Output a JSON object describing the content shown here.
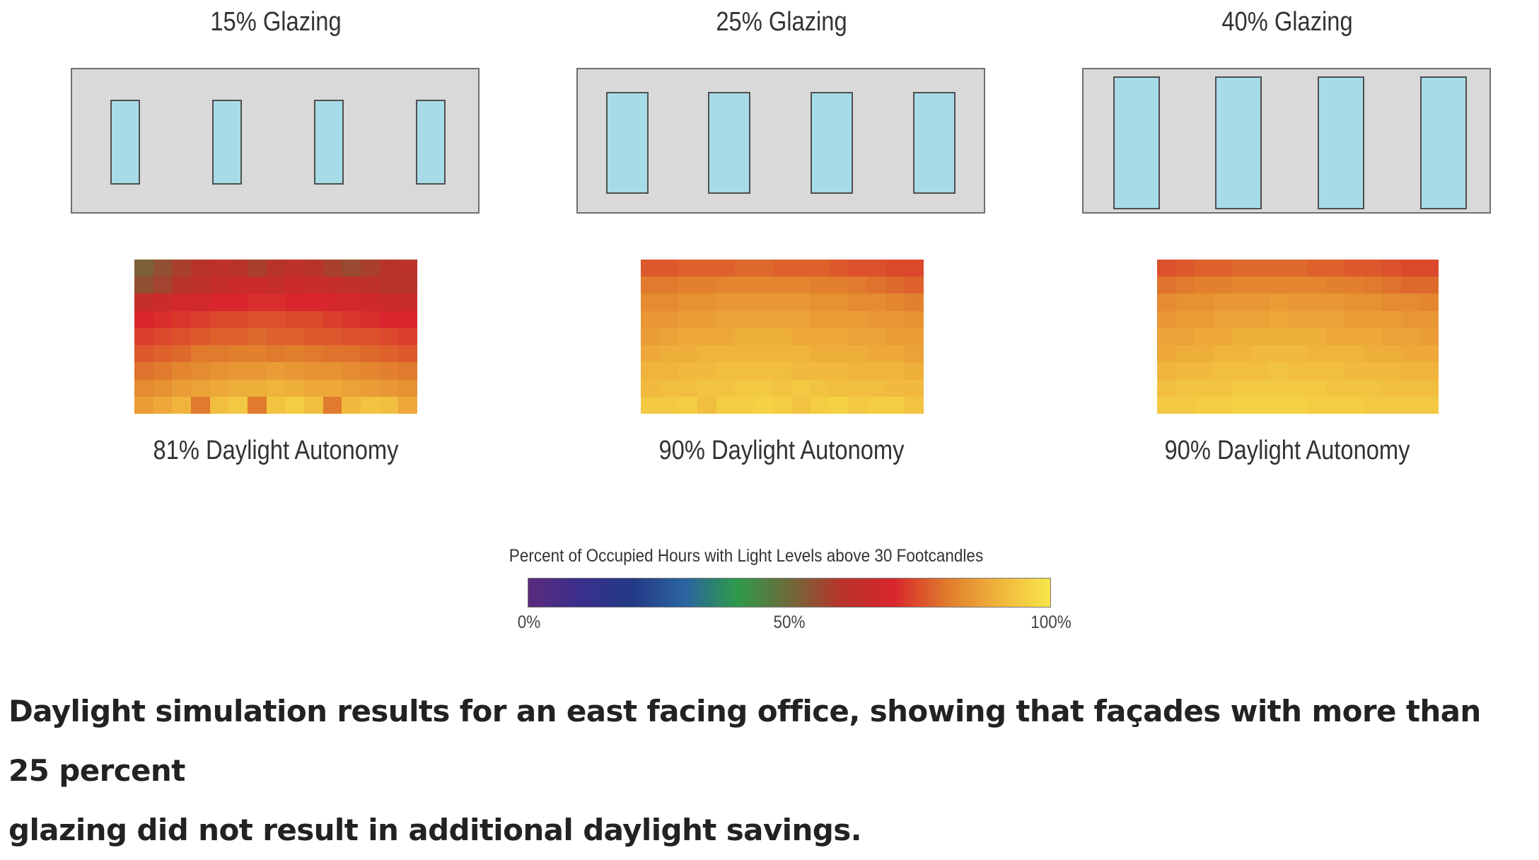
{
  "panels": [
    {
      "title": "15% Glazing",
      "autonomy_label": "81% Daylight Autonomy",
      "daylight_autonomy_percent": 81,
      "heatmap_values": [
        [
          52,
          55,
          58,
          60,
          62,
          60,
          58,
          60,
          62,
          60,
          58,
          56,
          58,
          60,
          61
        ],
        [
          55,
          57,
          60,
          62,
          64,
          66,
          66,
          64,
          66,
          65,
          64,
          63,
          62,
          60,
          60
        ],
        [
          64,
          66,
          68,
          68,
          70,
          70,
          71,
          71,
          70,
          70,
          69,
          68,
          67,
          66,
          65
        ],
        [
          70,
          71,
          72,
          73,
          74,
          74,
          75,
          75,
          74,
          74,
          73,
          72,
          71,
          70,
          70
        ],
        [
          73,
          74,
          75,
          76,
          77,
          77,
          78,
          77,
          77,
          76,
          76,
          75,
          75,
          74,
          73
        ],
        [
          76,
          77,
          78,
          80,
          80,
          81,
          81,
          80,
          81,
          80,
          79,
          79,
          78,
          77,
          76
        ],
        [
          79,
          80,
          82,
          83,
          84,
          85,
          85,
          86,
          85,
          84,
          84,
          83,
          82,
          81,
          80
        ],
        [
          83,
          84,
          86,
          87,
          88,
          89,
          89,
          90,
          89,
          88,
          88,
          87,
          86,
          85,
          84
        ],
        [
          86,
          88,
          90,
          80,
          92,
          94,
          80,
          93,
          95,
          92,
          80,
          91,
          93,
          92,
          88
        ]
      ]
    },
    {
      "title": "25% Glazing",
      "autonomy_label": "90% Daylight Autonomy",
      "daylight_autonomy_percent": 90,
      "heatmap_values": [
        [
          76,
          76,
          77,
          77,
          77,
          78,
          78,
          77,
          77,
          77,
          76,
          75,
          75,
          74,
          74
        ],
        [
          80,
          80,
          81,
          81,
          82,
          82,
          82,
          82,
          82,
          81,
          81,
          80,
          79,
          78,
          77
        ],
        [
          83,
          83,
          84,
          84,
          85,
          85,
          85,
          85,
          85,
          84,
          84,
          83,
          83,
          82,
          81
        ],
        [
          85,
          85,
          86,
          86,
          87,
          87,
          87,
          87,
          87,
          86,
          86,
          86,
          85,
          85,
          84
        ],
        [
          86,
          87,
          88,
          88,
          88,
          89,
          89,
          89,
          88,
          88,
          88,
          87,
          87,
          86,
          86
        ],
        [
          88,
          89,
          89,
          90,
          90,
          90,
          90,
          90,
          90,
          89,
          89,
          89,
          88,
          88,
          87
        ],
        [
          90,
          90,
          91,
          91,
          92,
          92,
          92,
          92,
          91,
          91,
          91,
          90,
          90,
          90,
          89
        ],
        [
          91,
          92,
          92,
          93,
          93,
          94,
          94,
          93,
          94,
          93,
          92,
          92,
          92,
          91,
          91
        ],
        [
          94,
          94,
          95,
          92,
          95,
          95,
          96,
          95,
          93,
          95,
          96,
          94,
          95,
          95,
          93
        ]
      ]
    },
    {
      "title": "40% Glazing",
      "autonomy_label": "90% Daylight Autonomy",
      "daylight_autonomy_percent": 90,
      "heatmap_values": [
        [
          75,
          76,
          77,
          77,
          78,
          78,
          78,
          78,
          77,
          77,
          76,
          76,
          75,
          74,
          74
        ],
        [
          79,
          80,
          81,
          81,
          82,
          82,
          82,
          82,
          82,
          81,
          81,
          80,
          79,
          78,
          78
        ],
        [
          83,
          84,
          84,
          85,
          85,
          85,
          86,
          85,
          85,
          85,
          84,
          84,
          83,
          83,
          82
        ],
        [
          85,
          86,
          86,
          87,
          87,
          87,
          88,
          87,
          87,
          87,
          86,
          86,
          86,
          85,
          85
        ],
        [
          87,
          87,
          88,
          88,
          89,
          89,
          89,
          89,
          89,
          88,
          88,
          88,
          87,
          87,
          86
        ],
        [
          88,
          89,
          89,
          90,
          90,
          91,
          91,
          91,
          90,
          90,
          90,
          89,
          89,
          88,
          88
        ],
        [
          90,
          91,
          91,
          92,
          92,
          92,
          93,
          92,
          92,
          92,
          91,
          91,
          91,
          90,
          90
        ],
        [
          92,
          93,
          93,
          93,
          94,
          94,
          94,
          94,
          94,
          93,
          93,
          93,
          92,
          92,
          92
        ],
        [
          94,
          94,
          95,
          95,
          96,
          96,
          96,
          96,
          95,
          95,
          95,
          94,
          94,
          94,
          94
        ]
      ]
    }
  ],
  "legend": {
    "title": "Percent of Occupied Hours with Light Levels above 30 Footcandles",
    "ticks": [
      {
        "label": "0%",
        "value": 0
      },
      {
        "label": "50%",
        "value": 50
      },
      {
        "label": "100%",
        "value": 100
      }
    ],
    "colors": [
      "#5b2a7e",
      "#3a2f8c",
      "#233a86",
      "#2a64a0",
      "#2e9a4a",
      "#6e6a3a",
      "#b8342a",
      "#d8262c",
      "#e07a2c",
      "#f0b43c",
      "#f7e64a"
    ]
  },
  "caption": {
    "line1": "Daylight simulation results for an east facing office, showing that façades with more than 25 percent",
    "line2": "glazing did not result in additional daylight savings."
  }
}
